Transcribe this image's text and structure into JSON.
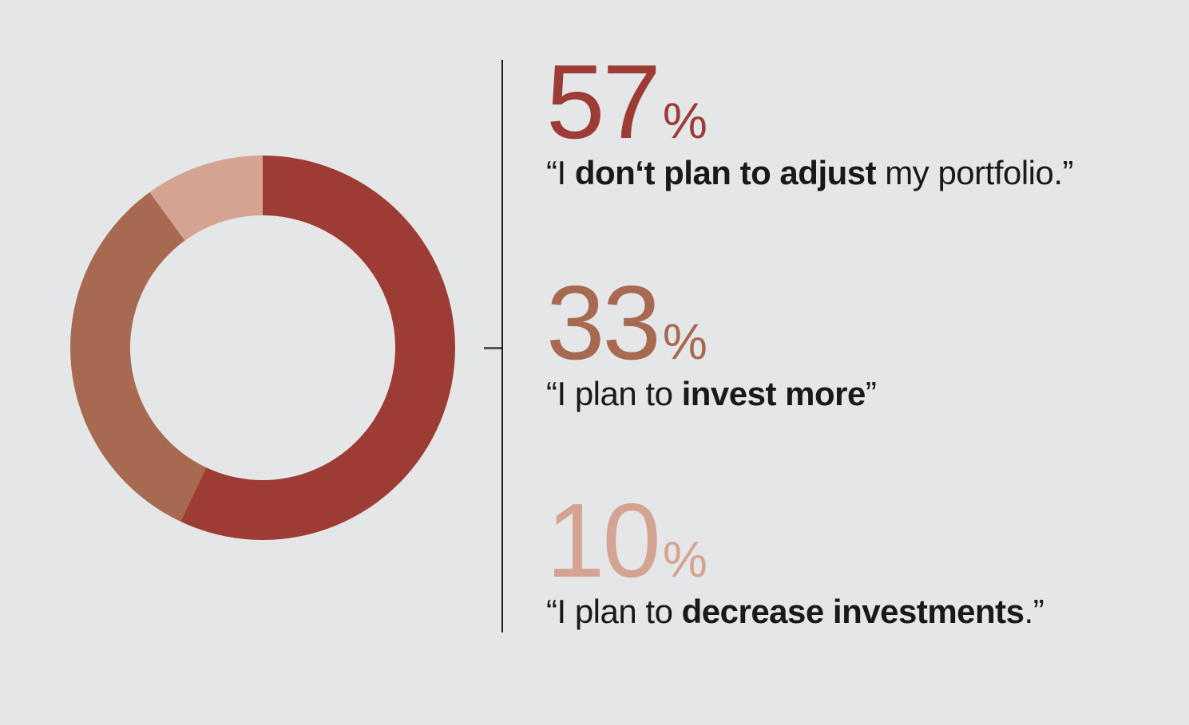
{
  "page": {
    "background": "#e5e6e7"
  },
  "divider": {
    "line_color": "#1d1d1d",
    "tick_color": "#53555a"
  },
  "chart_data": {
    "type": "pie",
    "style": "donut",
    "title": "",
    "start_angle_deg": 0,
    "direction": "clockwise",
    "categories": [
      "I don‘t plan to adjust my portfolio.",
      "I plan to invest more",
      "I plan to decrease investments."
    ],
    "values": [
      57,
      33,
      10
    ],
    "colors": [
      "#9d3c35",
      "#a7694f",
      "#d5a392"
    ],
    "hole_ratio": 0.69,
    "legend_position": "right"
  },
  "items": [
    {
      "value": "57",
      "unit": "%",
      "color": "#9d3c35",
      "quote_prefix": "“I ",
      "quote_bold": "don‘t plan to adjust",
      "quote_suffix": " my portfolio.”"
    },
    {
      "value": "33",
      "unit": "%",
      "color": "#a7694f",
      "quote_prefix": "“I plan to ",
      "quote_bold": "invest more",
      "quote_suffix": "”"
    },
    {
      "value": "10",
      "unit": "%",
      "color": "#d5a392",
      "quote_prefix": "“I plan to ",
      "quote_bold": "decrease investments",
      "quote_suffix": ".”"
    }
  ]
}
